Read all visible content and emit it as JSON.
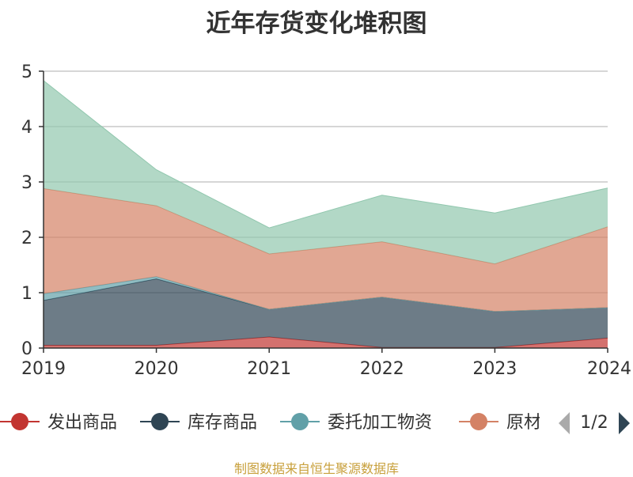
{
  "title": "近年存货变化堆积图",
  "source_note": "制图数据来自恒生聚源数据库",
  "legend": {
    "page_indicator": "1/2",
    "visible_labels": [
      "发出商品",
      "库存商品",
      "委托加工物资",
      "原材"
    ]
  },
  "chart_data": {
    "type": "area",
    "stacked": true,
    "title": "近年存货变化堆积图",
    "x": [
      "2019",
      "2020",
      "2021",
      "2022",
      "2023",
      "2024"
    ],
    "ylim": [
      0,
      5
    ],
    "yticks": [
      0,
      1,
      2,
      3,
      4,
      5
    ],
    "grid": true,
    "legend_position": "bottom",
    "series": [
      {
        "name": "发出商品",
        "color": "#c23531",
        "values": [
          0.05,
          0.05,
          0.2,
          0.01,
          0.01,
          0.18
        ]
      },
      {
        "name": "库存商品",
        "color": "#2f4554",
        "values": [
          0.81,
          1.2,
          0.5,
          0.91,
          0.65,
          0.55
        ]
      },
      {
        "name": "委托加工物资",
        "color": "#61a0a8",
        "values": [
          0.12,
          0.04,
          0.0,
          0.0,
          0.0,
          0.0
        ]
      },
      {
        "name": "原材料",
        "color": "#d48265",
        "values": [
          1.9,
          1.28,
          1.0,
          1.0,
          0.86,
          1.46
        ]
      },
      {
        "name": "",
        "color": "#91c7ae",
        "values": [
          1.95,
          0.65,
          0.47,
          0.84,
          0.92,
          0.7
        ]
      }
    ]
  }
}
